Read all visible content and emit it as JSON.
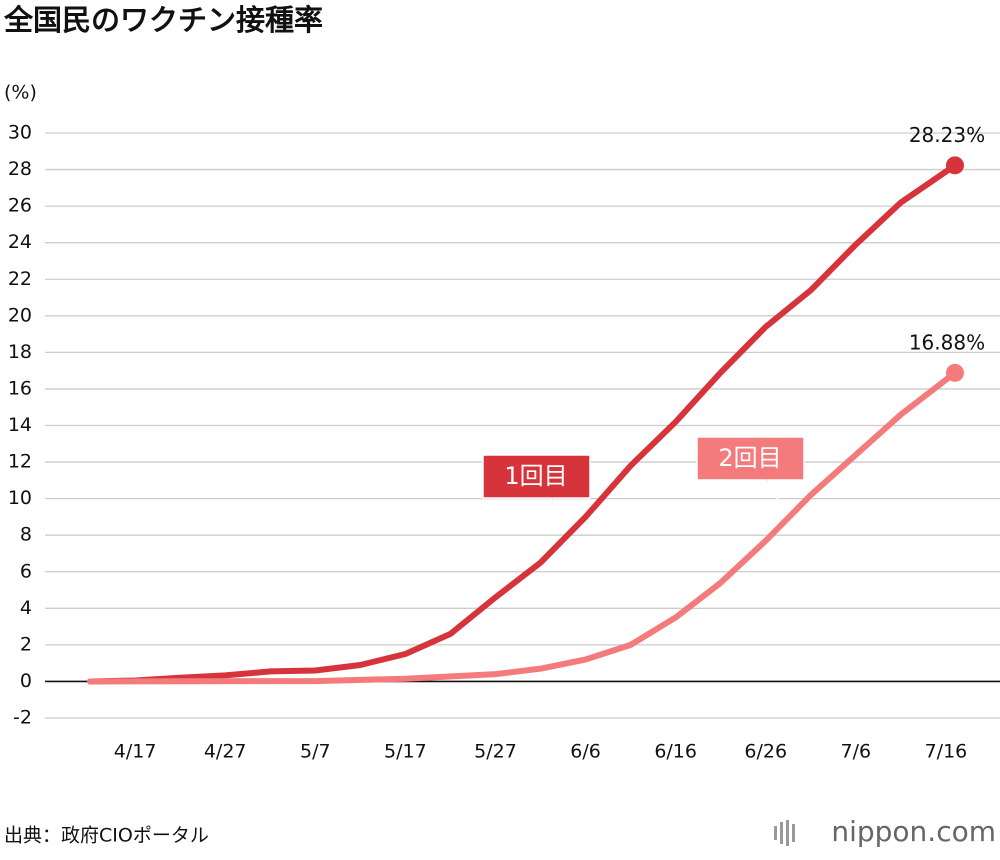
{
  "chart_data": {
    "type": "line",
    "title": "全国民のワクチン接種率",
    "y_unit": "(%)",
    "source": "出典：政府CIOポータル",
    "logo": "nippon.com",
    "xlim": [
      "4/7",
      "7/22"
    ],
    "xticks": [
      "4/17",
      "4/27",
      "5/7",
      "5/17",
      "5/27",
      "6/6",
      "6/16",
      "6/26",
      "7/6",
      "7/16"
    ],
    "ylim": [
      -2,
      30
    ],
    "yticks": [
      -2,
      0,
      2,
      4,
      6,
      8,
      10,
      12,
      14,
      16,
      18,
      20,
      22,
      24,
      26,
      28,
      30
    ],
    "grid": true,
    "series": [
      {
        "name": "1回目",
        "color": "#d6333b",
        "x": [
          "4/12",
          "4/17",
          "4/22",
          "4/27",
          "5/2",
          "5/7",
          "5/12",
          "5/17",
          "5/22",
          "5/27",
          "6/1",
          "6/6",
          "6/11",
          "6/16",
          "6/21",
          "6/26",
          "7/1",
          "7/6",
          "7/11",
          "7/17"
        ],
        "values": [
          0,
          0.05,
          0.2,
          0.33,
          0.55,
          0.6,
          0.9,
          1.5,
          2.6,
          4.6,
          6.5,
          9.0,
          11.8,
          14.2,
          16.9,
          19.4,
          21.4,
          23.9,
          26.2,
          28.23
        ],
        "value_labels": [
          null,
          null,
          null,
          null,
          null,
          null,
          null,
          null,
          null,
          null,
          null,
          null,
          null,
          null,
          null,
          null,
          null,
          null,
          null,
          "28.23%"
        ]
      },
      {
        "name": "2回目",
        "color": "#f47b7b",
        "x": [
          "4/12",
          "5/7",
          "5/17",
          "5/27",
          "6/1",
          "6/6",
          "6/11",
          "6/16",
          "6/21",
          "6/26",
          "7/1",
          "7/6",
          "7/11",
          "7/17"
        ],
        "values": [
          0,
          0.02,
          0.15,
          0.4,
          0.7,
          1.2,
          2.0,
          3.5,
          5.4,
          7.7,
          10.2,
          12.4,
          14.6,
          16.88
        ],
        "value_labels": [
          null,
          null,
          null,
          null,
          null,
          null,
          null,
          null,
          null,
          null,
          null,
          null,
          null,
          "16.88%"
        ]
      }
    ]
  }
}
